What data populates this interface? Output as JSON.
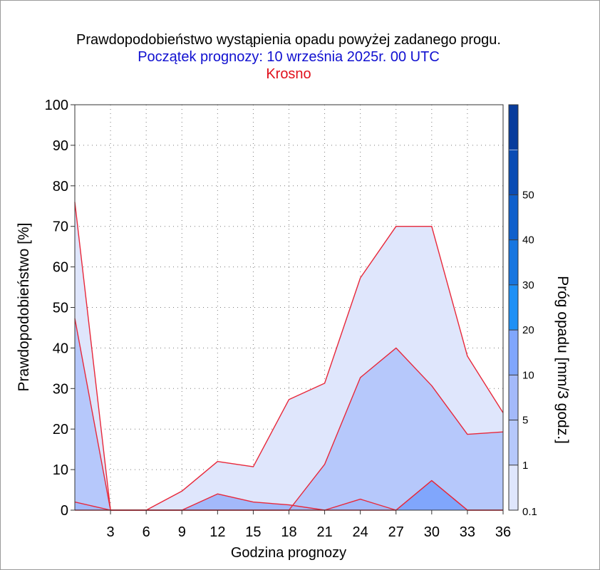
{
  "chart_data": {
    "type": "area",
    "title": "Prawdopodobieństwo wystąpienia opadu powyżej zadanego progu.",
    "subtitle": "Początek prognozy: 10 września 2025r. 00 UTC",
    "location": "Krosno",
    "xlabel": "Godzina prognozy",
    "ylabel": "Prawdopodobieństwo [%]",
    "colorbar_label": "Próg opadu [mm/3 godz.]",
    "xlim": [
      0,
      36
    ],
    "ylim": [
      0,
      100
    ],
    "grid": true,
    "x": [
      0,
      3,
      6,
      9,
      12,
      15,
      18,
      21,
      24,
      27,
      30,
      33,
      36
    ],
    "x_ticks": [
      "3",
      "6",
      "9",
      "12",
      "15",
      "18",
      "21",
      "24",
      "27",
      "30",
      "33",
      "36"
    ],
    "x_tick_values": [
      3,
      6,
      9,
      12,
      15,
      18,
      21,
      24,
      27,
      30,
      33,
      36
    ],
    "y_ticks": [
      "0",
      "10",
      "20",
      "30",
      "40",
      "50",
      "60",
      "70",
      "80",
      "90",
      "100"
    ],
    "y_tick_values": [
      0,
      10,
      20,
      30,
      40,
      50,
      60,
      70,
      80,
      90,
      100
    ],
    "series": [
      {
        "threshold": 0.1,
        "color": "#dfe6fc",
        "values": [
          76,
          0,
          0,
          4.7,
          12,
          10.7,
          27.3,
          31.3,
          57.3,
          70,
          70,
          38,
          24
        ]
      },
      {
        "threshold": 1,
        "color": "#b6c8fb",
        "values": [
          47.3,
          0,
          0,
          0,
          0,
          0,
          0,
          11.3,
          32.7,
          40,
          30.7,
          18.7,
          19.3
        ]
      },
      {
        "threshold": 5,
        "color": "#a3b9fa",
        "values": [
          2,
          0,
          0,
          0,
          4,
          2,
          1.3,
          0,
          2.7,
          0,
          7.3,
          0,
          0
        ]
      },
      {
        "threshold": 10,
        "color": "#80a6fc",
        "values": [
          0,
          0,
          0,
          0,
          0,
          0,
          0,
          0,
          0,
          0,
          7.3,
          0,
          0
        ]
      }
    ],
    "colorbar": {
      "tick_labels": [
        "0.1",
        "1",
        "5",
        "10",
        "20",
        "30",
        "40",
        "50"
      ],
      "bands": [
        {
          "from": 0.1,
          "to": 1,
          "color": "#dfe6fc"
        },
        {
          "from": 1,
          "to": 5,
          "color": "#b6c8fb"
        },
        {
          "from": 5,
          "to": 10,
          "color": "#a3b9fa"
        },
        {
          "from": 10,
          "to": 20,
          "color": "#80a6fc"
        },
        {
          "from": 20,
          "to": 30,
          "color": "#1e90f5"
        },
        {
          "from": 30,
          "to": 40,
          "color": "#1776e0"
        },
        {
          "from": 40,
          "to": 50,
          "color": "#0f60cc"
        },
        {
          "from": 50,
          "to": 60,
          "color": "#0a4cb4"
        },
        {
          "from": 60,
          "to": 70,
          "color": "#083c9c"
        }
      ]
    }
  }
}
